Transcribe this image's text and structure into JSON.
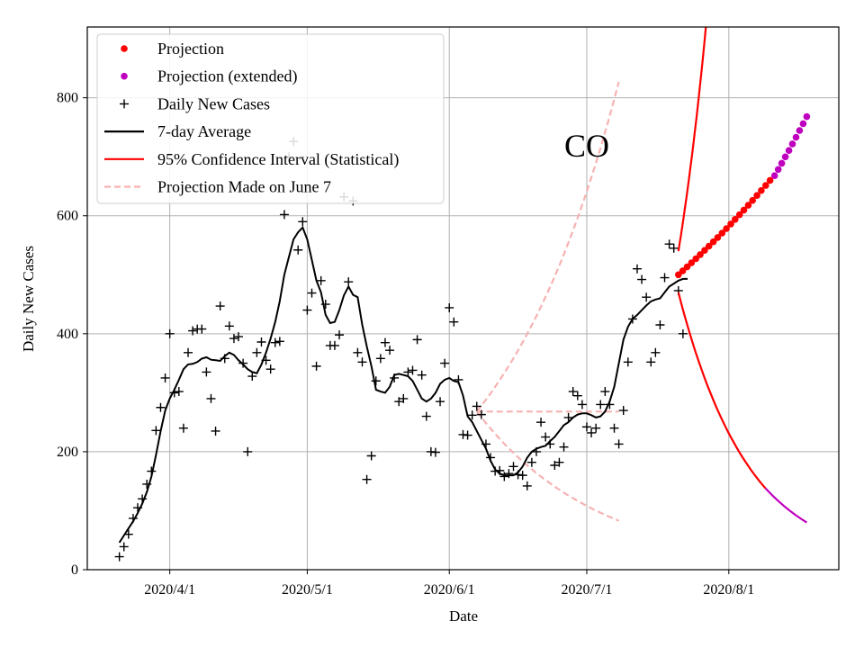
{
  "chart_data": {
    "type": "scatter",
    "title": "",
    "annotation": "CO",
    "xlabel": "Date",
    "ylabel": "Daily New Cases",
    "xlim": [
      "2020-03-14",
      "2020-08-25"
    ],
    "ylim": [
      0,
      920
    ],
    "grid": true,
    "legend_position": "top-left",
    "x_ticks": [
      {
        "date": "2020-04-01",
        "label": "2020/4/1"
      },
      {
        "date": "2020-05-01",
        "label": "2020/5/1"
      },
      {
        "date": "2020-06-01",
        "label": "2020/6/1"
      },
      {
        "date": "2020-07-01",
        "label": "2020/7/1"
      },
      {
        "date": "2020-08-01",
        "label": "2020/8/1"
      }
    ],
    "y_ticks": [
      {
        "value": 0,
        "label": "0"
      },
      {
        "value": 200,
        "label": "200"
      },
      {
        "value": 400,
        "label": "400"
      },
      {
        "value": 600,
        "label": "600"
      },
      {
        "value": 800,
        "label": "800"
      }
    ],
    "colors": {
      "projection": "#ff0000",
      "projection_extended": "#bf00bf",
      "daily": "#000000",
      "average": "#000000",
      "ci": "#ff0000",
      "june7": "#f7b2b2"
    },
    "legend": [
      {
        "key": "projection",
        "label": "Projection"
      },
      {
        "key": "projection_extended",
        "label": "Projection (extended)"
      },
      {
        "key": "daily",
        "label": "Daily New Cases"
      },
      {
        "key": "average",
        "label": "7-day Average"
      },
      {
        "key": "ci",
        "label": "95% Confidence Interval (Statistical)"
      },
      {
        "key": "june7",
        "label": "Projection Made on June 7"
      }
    ],
    "series": [
      {
        "name": "Daily New Cases",
        "type": "scatter",
        "marker": "plus",
        "start": "2020-03-21",
        "values": [
          22,
          39,
          60,
          87,
          105,
          120,
          145,
          167,
          236,
          275,
          325,
          400,
          300,
          302,
          240,
          368,
          405,
          408,
          408,
          335,
          290,
          235,
          447,
          358,
          413,
          392,
          395,
          350,
          200,
          328,
          368,
          386,
          355,
          340,
          385,
          387,
          602,
          700,
          726,
          542,
          590,
          440,
          469,
          345,
          490,
          450,
          380,
          380,
          398,
          632,
          488,
          625,
          368,
          352,
          153,
          193,
          320,
          358,
          385,
          372,
          325,
          285,
          290,
          335,
          338,
          390,
          330,
          260,
          200,
          199,
          285,
          350,
          444,
          420,
          322,
          229,
          228,
          262,
          277,
          263,
          213,
          190,
          167,
          168,
          158,
          163,
          175,
          161,
          160,
          142,
          182,
          200,
          250,
          225,
          213,
          177,
          182,
          208,
          258,
          302,
          295,
          280,
          242,
          232,
          240,
          280,
          302,
          280,
          240,
          213,
          270,
          352,
          425,
          510,
          492,
          462,
          352,
          368,
          415,
          495,
          552,
          545,
          473,
          400
        ]
      },
      {
        "name": "7-day Average",
        "type": "line",
        "start": "2020-03-21",
        "values": [
          46,
          58,
          70,
          82,
          96,
          112,
          132,
          158,
          195,
          235,
          270,
          290,
          305,
          322,
          340,
          348,
          349,
          352,
          358,
          360,
          356,
          355,
          354,
          362,
          368,
          364,
          355,
          348,
          340,
          335,
          333,
          348,
          368,
          392,
          420,
          455,
          500,
          530,
          560,
          572,
          580,
          560,
          525,
          490,
          470,
          432,
          418,
          420,
          440,
          465,
          480,
          466,
          462,
          415,
          378,
          345,
          305,
          302,
          300,
          310,
          330,
          332,
          330,
          328,
          320,
          305,
          290,
          285,
          290,
          300,
          315,
          322,
          325,
          320,
          318,
          295,
          260,
          250,
          235,
          220,
          205,
          185,
          170,
          163,
          160,
          160,
          160,
          165,
          175,
          190,
          200,
          205,
          208,
          210,
          218,
          225,
          235,
          245,
          250,
          258,
          263,
          265,
          265,
          262,
          258,
          260,
          268,
          285,
          310,
          350,
          390,
          412,
          425,
          432,
          440,
          448,
          455,
          458,
          460,
          470,
          480,
          485,
          490,
          493,
          493
        ]
      },
      {
        "name": "Projection",
        "type": "scatter",
        "marker": "dot",
        "start": "2020-07-21",
        "end": "2020-08-10",
        "count": 22,
        "y_start": 500,
        "y_end": 660
      },
      {
        "name": "Projection (extended)",
        "type": "scatter",
        "marker": "dot",
        "start": "2020-08-11",
        "end": "2020-08-18",
        "count": 10,
        "y_start": 668,
        "y_end": 768
      },
      {
        "name": "95% Confidence Interval (Statistical) upper",
        "type": "line",
        "start": "2020-07-21",
        "end": "2020-07-27",
        "y_start": 540,
        "y_end": 920
      },
      {
        "name": "95% Confidence Interval (Statistical) lower",
        "type": "line",
        "start": "2020-07-21",
        "end": "2020-08-09",
        "y_start": 470,
        "y_end": 138,
        "extended_end": "2020-08-18",
        "extended_y_end": 80
      },
      {
        "name": "Projection Made on June 7",
        "type": "line",
        "dashed": true,
        "start": "2020-06-07",
        "end": "2020-07-08",
        "center": [
          268,
          268
        ],
        "upper": [
          268,
          827
        ],
        "lower": [
          268,
          83
        ]
      }
    ]
  }
}
